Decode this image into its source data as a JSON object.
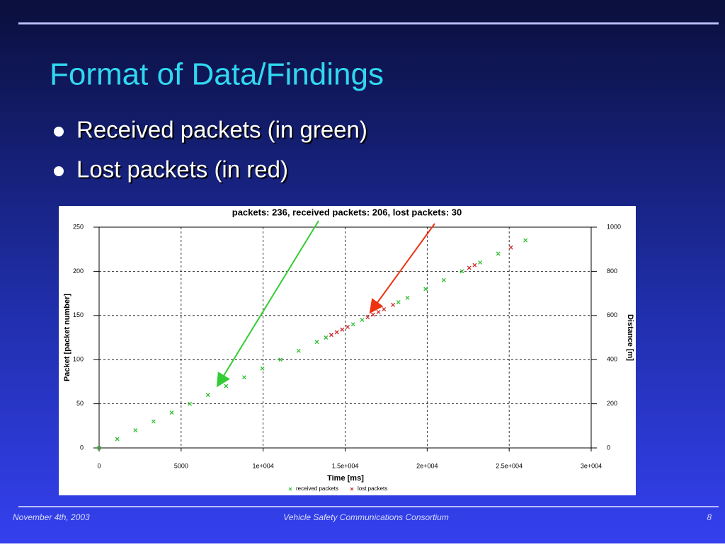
{
  "slide": {
    "title": "Format of Data/Findings",
    "bullets": [
      "Received packets (in green)",
      "Lost packets (in red)"
    ],
    "footer": {
      "date": "November 4th, 2003",
      "organization": "Vehicle Safety Communications Consortium",
      "page": "8"
    }
  },
  "chart_data": {
    "type": "scatter",
    "title": "packets: 236, received packets: 206, lost packets: 30",
    "x_label": "Time [ms]",
    "y_label": "Packet [packet number]",
    "y2_label": "Distance [m]",
    "xlim": [
      0,
      30000
    ],
    "xticks": [
      0,
      5000,
      {
        "value": 10000,
        "label": "1e+004"
      },
      {
        "value": 15000,
        "label": "1.5e+004"
      },
      {
        "value": 20000,
        "label": "2e+004"
      },
      {
        "value": 25000,
        "label": "2.5e+004"
      },
      {
        "value": 30000,
        "label": "3e+004"
      }
    ],
    "ylim": [
      0,
      250
    ],
    "yticks": [
      0,
      50,
      100,
      150,
      200,
      250
    ],
    "y2lim": [
      0,
      1000
    ],
    "y2ticks": [
      0,
      200,
      400,
      600,
      800,
      1000
    ],
    "grid": true,
    "series": [
      {
        "name": "received packets",
        "color": "#2fbf2f",
        "x": [
          0,
          1106,
          2212,
          3318,
          4424,
          5530,
          6636,
          7742,
          8848,
          9954,
          11060,
          12166,
          13272,
          13825,
          15484,
          16037,
          18249,
          18802,
          19908,
          21014,
          22120,
          23226,
          24332,
          25991
        ],
        "values": [
          0,
          10,
          20,
          30,
          40,
          50,
          60,
          70,
          80,
          90,
          100,
          110,
          120,
          125,
          140,
          145,
          165,
          170,
          180,
          190,
          200,
          210,
          220,
          235
        ]
      },
      {
        "name": "lost packets",
        "color": "#d02828",
        "x": [
          14157,
          14489,
          14820,
          15152,
          16369,
          16701,
          17032,
          17364,
          17917,
          22562,
          22894,
          25106
        ],
        "values": [
          128,
          131,
          134,
          137,
          148,
          151,
          154,
          157,
          162,
          204,
          207,
          227
        ]
      }
    ]
  }
}
